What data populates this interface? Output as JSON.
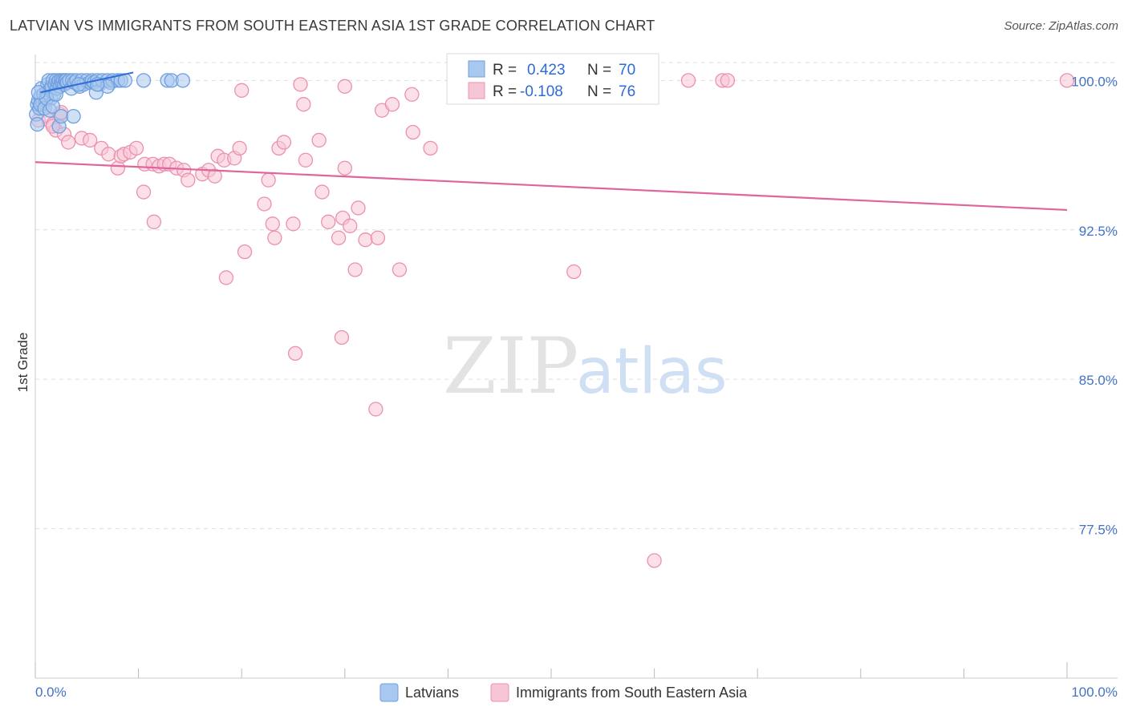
{
  "header": {
    "title": "LATVIAN VS IMMIGRANTS FROM SOUTH EASTERN ASIA 1ST GRADE CORRELATION CHART",
    "source": "Source: ZipAtlas.com"
  },
  "watermark": {
    "zip": "ZIP",
    "atlas": "atlas"
  },
  "colors": {
    "blue_fill": "#a9c8ef",
    "blue_stroke": "#6f9fde",
    "blue_line": "#2e6bd6",
    "pink_fill": "#f7c6d6",
    "pink_stroke": "#ec90b0",
    "pink_line": "#e0659a",
    "grid": "#dddddd"
  },
  "chart_data": {
    "type": "scatter",
    "title": "LATVIAN VS IMMIGRANTS FROM SOUTH EASTERN ASIA 1ST GRADE CORRELATION CHART",
    "xlabel": "",
    "ylabel": "1st Grade",
    "xlim": [
      0,
      100
    ],
    "ylim": [
      70,
      100.9
    ],
    "y_ticks": [
      {
        "value": 100,
        "label": "100.0%"
      },
      {
        "value": 92.5,
        "label": "92.5%"
      },
      {
        "value": 85,
        "label": "85.0%"
      },
      {
        "value": 77.5,
        "label": "77.5%"
      }
    ],
    "x_tick_labels": {
      "min": "0.0%",
      "max": "100.0%"
    },
    "legend": {
      "position": "top-center",
      "entries": [
        {
          "series": "Latvians",
          "r_label": "R =",
          "r": "0.423",
          "n_label": "N =",
          "n": "70"
        },
        {
          "series": "Immigrants from South Eastern Asia",
          "r_label": "R =",
          "r": "-0.108",
          "n_label": "N =",
          "n": "76"
        }
      ]
    },
    "series": [
      {
        "name": "Latvians",
        "trend": {
          "x1": 0.5,
          "y1": 99.4,
          "x2": 9.5,
          "y2": 100.4
        },
        "points": [
          [
            0.1,
            98.3
          ],
          [
            0.2,
            98.8
          ],
          [
            0.3,
            99.0
          ],
          [
            0.4,
            98.6
          ],
          [
            0.5,
            99.2
          ],
          [
            0.6,
            99.6
          ],
          [
            0.7,
            98.9
          ],
          [
            0.8,
            99.3
          ],
          [
            1.0,
            99.0
          ],
          [
            1.1,
            99.4
          ],
          [
            1.2,
            99.8
          ],
          [
            1.3,
            100.0
          ],
          [
            1.4,
            99.5
          ],
          [
            1.5,
            99.1
          ],
          [
            1.6,
            99.7
          ],
          [
            1.7,
            100.0
          ],
          [
            1.8,
            99.3
          ],
          [
            1.9,
            99.8
          ],
          [
            2.0,
            100.0
          ],
          [
            2.1,
            99.6
          ],
          [
            2.2,
            99.9
          ],
          [
            2.3,
            100.0
          ],
          [
            2.4,
            99.7
          ],
          [
            2.5,
            100.0
          ],
          [
            2.6,
            99.9
          ],
          [
            2.7,
            100.0
          ],
          [
            2.8,
            99.8
          ],
          [
            2.9,
            100.0
          ],
          [
            3.0,
            100.0
          ],
          [
            3.1,
            99.9
          ],
          [
            3.3,
            100.0
          ],
          [
            3.5,
            99.6
          ],
          [
            3.6,
            100.0
          ],
          [
            3.8,
            99.9
          ],
          [
            4.0,
            100.0
          ],
          [
            4.3,
            99.7
          ],
          [
            4.5,
            100.0
          ],
          [
            4.7,
            99.8
          ],
          [
            5.0,
            100.0
          ],
          [
            5.3,
            99.9
          ],
          [
            5.5,
            100.0
          ],
          [
            5.7,
            99.9
          ],
          [
            6.0,
            100.0
          ],
          [
            6.2,
            99.8
          ],
          [
            6.5,
            100.0
          ],
          [
            7.0,
            100.0
          ],
          [
            7.3,
            99.9
          ],
          [
            7.5,
            100.0
          ],
          [
            8.0,
            100.0
          ],
          [
            8.3,
            100.0
          ],
          [
            8.7,
            100.0
          ],
          [
            10.5,
            100.0
          ],
          [
            12.8,
            100.0
          ],
          [
            13.2,
            100.0
          ],
          [
            14.3,
            100.0
          ],
          [
            0.2,
            97.8
          ],
          [
            0.5,
            98.8
          ],
          [
            0.9,
            98.6
          ],
          [
            1.1,
            99.1
          ],
          [
            1.4,
            98.5
          ],
          [
            1.7,
            98.7
          ],
          [
            2.3,
            97.7
          ],
          [
            2.5,
            98.2
          ],
          [
            3.7,
            98.2
          ],
          [
            5.9,
            99.4
          ],
          [
            7.0,
            99.7
          ],
          [
            6.0,
            99.8
          ],
          [
            4.2,
            99.8
          ],
          [
            0.3,
            99.4
          ],
          [
            2.0,
            99.3
          ]
        ]
      },
      {
        "name": "Immigrants from South Eastern Asia",
        "trend": {
          "x1": 0,
          "y1": 95.9,
          "x2": 100,
          "y2": 93.5
        },
        "points": [
          [
            0.3,
            98.0
          ],
          [
            1.3,
            98.0
          ],
          [
            1.7,
            97.8
          ],
          [
            2.0,
            97.5
          ],
          [
            2.8,
            97.3
          ],
          [
            3.2,
            96.9
          ],
          [
            4.5,
            97.1
          ],
          [
            5.3,
            97.0
          ],
          [
            6.4,
            96.6
          ],
          [
            7.1,
            96.3
          ],
          [
            8.0,
            95.6
          ],
          [
            8.3,
            96.2
          ],
          [
            8.6,
            96.3
          ],
          [
            9.2,
            96.4
          ],
          [
            9.8,
            96.6
          ],
          [
            10.6,
            95.8
          ],
          [
            11.4,
            95.8
          ],
          [
            12.0,
            95.7
          ],
          [
            12.5,
            95.8
          ],
          [
            13.0,
            95.8
          ],
          [
            13.7,
            95.6
          ],
          [
            14.4,
            95.5
          ],
          [
            14.8,
            95.0
          ],
          [
            16.2,
            95.3
          ],
          [
            16.8,
            95.5
          ],
          [
            17.4,
            95.2
          ],
          [
            17.7,
            96.2
          ],
          [
            18.3,
            96.0
          ],
          [
            19.3,
            96.1
          ],
          [
            19.8,
            96.6
          ],
          [
            22.6,
            95.0
          ],
          [
            23.6,
            96.6
          ],
          [
            24.1,
            96.9
          ],
          [
            26.2,
            96.0
          ],
          [
            27.5,
            97.0
          ],
          [
            27.8,
            94.4
          ],
          [
            30.0,
            95.6
          ],
          [
            22.2,
            93.8
          ],
          [
            23.0,
            92.8
          ],
          [
            23.2,
            92.1
          ],
          [
            25.0,
            92.8
          ],
          [
            28.4,
            92.9
          ],
          [
            29.4,
            92.1
          ],
          [
            29.8,
            93.1
          ],
          [
            30.5,
            92.7
          ],
          [
            31.3,
            93.6
          ],
          [
            32.0,
            92.0
          ],
          [
            33.2,
            92.1
          ],
          [
            35.3,
            90.5
          ],
          [
            31.0,
            90.5
          ],
          [
            20.3,
            91.4
          ],
          [
            18.5,
            90.1
          ],
          [
            11.5,
            92.9
          ],
          [
            10.5,
            94.4
          ],
          [
            25.2,
            86.3
          ],
          [
            29.7,
            87.1
          ],
          [
            33.0,
            83.5
          ],
          [
            60.0,
            75.9
          ],
          [
            52.2,
            90.4
          ],
          [
            33.6,
            98.5
          ],
          [
            30.0,
            99.7
          ],
          [
            26.0,
            98.8
          ],
          [
            25.7,
            99.8
          ],
          [
            20.0,
            99.5
          ],
          [
            34.6,
            98.8
          ],
          [
            36.5,
            99.3
          ],
          [
            36.6,
            97.4
          ],
          [
            38.3,
            96.6
          ],
          [
            2.4,
            98.3
          ],
          [
            1.7,
            97.7
          ],
          [
            0.7,
            98.6
          ],
          [
            2.5,
            98.4
          ],
          [
            63.3,
            100.0
          ],
          [
            66.6,
            100.0
          ],
          [
            67.1,
            100.0
          ],
          [
            100.0,
            100.0
          ]
        ]
      }
    ]
  },
  "bottom_legend": {
    "latvians": "Latvians",
    "immigrants": "Immigrants from South Eastern Asia"
  }
}
